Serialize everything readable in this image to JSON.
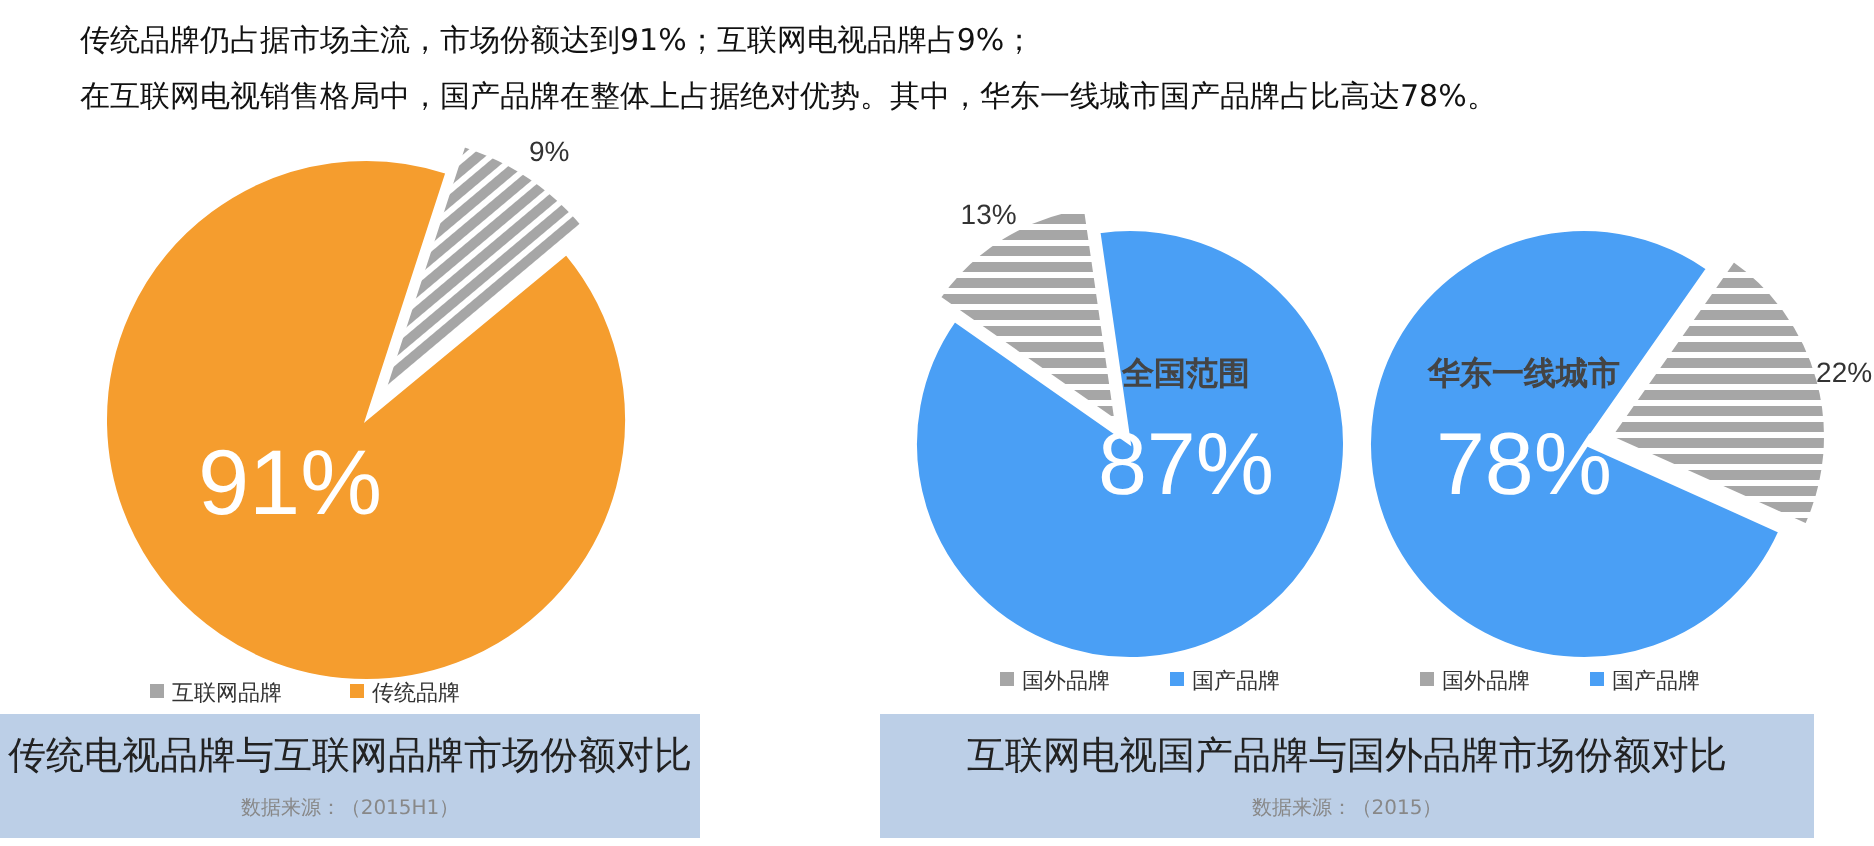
{
  "chart_data": [
    {
      "type": "pie",
      "title": "传统电视品牌与互联网品牌市场份额对比",
      "categories": [
        "互联网品牌",
        "传统品牌"
      ],
      "values": [
        9,
        91
      ],
      "colors": [
        "#a6a6a6",
        "#f59d2e"
      ],
      "value_labels": [
        "9%",
        "91%"
      ],
      "legend": "bottom",
      "annotations": [
        "传统品牌仍占据市场主流，市场份额达到91%；互联网电视品牌占9%；",
        "在互联网电视销售格局中，国产品牌在整体上占据绝对优势。其中，华东一线城市国产品牌占比高达78%。",
        "数据来源：（2015H1）"
      ]
    },
    {
      "type": "pie",
      "title": "互联网电视国产品牌与国外品牌市场份额对比",
      "subtitle": "全国范围",
      "categories": [
        "国外品牌",
        "国产品牌"
      ],
      "values": [
        13,
        87
      ],
      "colors": [
        "#a6a6a6",
        "#4a9ff5"
      ],
      "value_labels": [
        "13%",
        "87%"
      ],
      "legend": "bottom",
      "annotations": [
        "数据来源：（2015）"
      ]
    },
    {
      "type": "pie",
      "subtitle": "华东一线城市",
      "categories": [
        "国外品牌",
        "国产品牌"
      ],
      "values": [
        22,
        78
      ],
      "colors": [
        "#a6a6a6",
        "#4a9ff5"
      ],
      "value_labels": [
        "22%",
        "78%"
      ],
      "legend": "bottom"
    }
  ]
}
